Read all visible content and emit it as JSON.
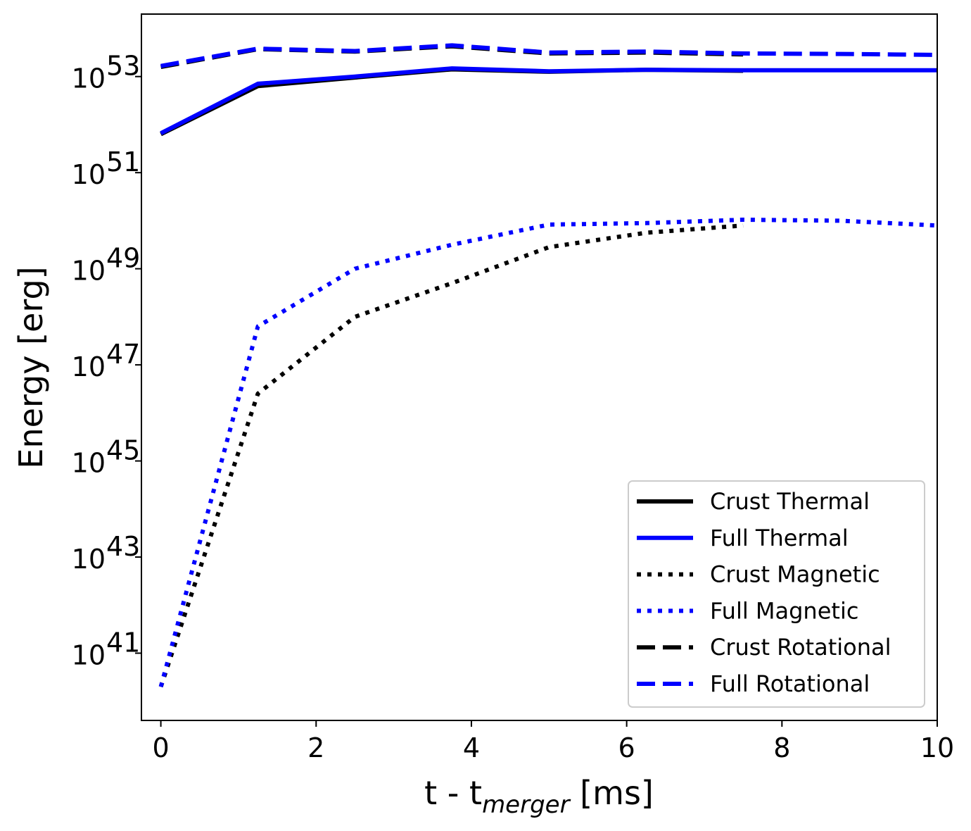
{
  "chart_data": {
    "type": "line",
    "title": "",
    "xlabel_main": "t - t",
    "xlabel_sub": "merger",
    "xlabel_unit": " [ms]",
    "ylabel": "Energy [erg]",
    "yscale": "log",
    "xlim": [
      -0.25,
      10
    ],
    "ylim_exp": [
      39.6,
      54.3
    ],
    "xticks": [
      0,
      2,
      4,
      6,
      8,
      10
    ],
    "yticks_exp": [
      41,
      43,
      45,
      47,
      49,
      51,
      53
    ],
    "ytick_base": "10",
    "legend_position": "lower-right",
    "series": [
      {
        "name": "Crust Thermal",
        "color": "#000000",
        "style": "solid",
        "x": [
          0,
          1.25,
          2.5,
          3.75,
          5,
          6.25,
          7.5
        ],
        "log10_y": [
          51.8,
          52.8,
          52.98,
          53.15,
          53.1,
          53.14,
          53.12
        ]
      },
      {
        "name": "Full Thermal",
        "color": "#0000ff",
        "style": "solid",
        "x": [
          0,
          1.25,
          2.5,
          3.75,
          5,
          6.25,
          7.5,
          8.75,
          10
        ],
        "log10_y": [
          51.82,
          52.85,
          53.0,
          53.17,
          53.11,
          53.14,
          53.13,
          53.13,
          53.13
        ]
      },
      {
        "name": "Crust Magnetic",
        "color": "#000000",
        "style": "dotted",
        "x": [
          0,
          1.25,
          2.5,
          3.75,
          5,
          6.25,
          7.5
        ],
        "log10_y": [
          40.3,
          46.4,
          48.0,
          48.7,
          49.45,
          49.75,
          49.9
        ]
      },
      {
        "name": "Full Magnetic",
        "color": "#0000ff",
        "style": "dotted",
        "x": [
          0,
          1.25,
          2.5,
          3.75,
          5,
          6.25,
          7.5,
          8.75,
          10
        ],
        "log10_y": [
          40.3,
          47.8,
          49.0,
          49.5,
          49.92,
          49.95,
          50.02,
          50.0,
          49.9
        ]
      },
      {
        "name": "Crust Rotational",
        "color": "#000000",
        "style": "dashed",
        "x": [
          0,
          1.25,
          2.5,
          3.75,
          5,
          6.25,
          7.5
        ],
        "log10_y": [
          53.2,
          53.57,
          53.52,
          53.63,
          53.48,
          53.5,
          53.46
        ]
      },
      {
        "name": "Full Rotational",
        "color": "#0000ff",
        "style": "dashed",
        "x": [
          0,
          1.25,
          2.5,
          3.75,
          5,
          6.25,
          7.5,
          8.75,
          10
        ],
        "log10_y": [
          53.22,
          53.58,
          53.53,
          53.65,
          53.5,
          53.52,
          53.48,
          53.47,
          53.45
        ]
      }
    ]
  }
}
